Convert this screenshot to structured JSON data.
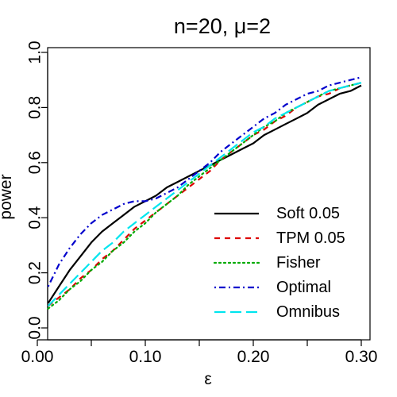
{
  "chart_data": {
    "type": "line",
    "title": "n=20, μ=2",
    "xlabel": "ε",
    "ylabel": "power",
    "xlim": [
      0.0,
      0.3
    ],
    "ylim": [
      0.0,
      1.0
    ],
    "x_ticks": [
      0.0,
      0.05,
      0.1,
      0.15,
      0.2,
      0.25,
      0.3
    ],
    "x_tick_labels": [
      "0.00",
      "",
      "0.10",
      "",
      "0.20",
      "",
      "0.30"
    ],
    "y_ticks": [
      0.0,
      0.2,
      0.4,
      0.6,
      0.8,
      1.0
    ],
    "y_tick_labels": [
      "0.0",
      "0.2",
      "0.4",
      "0.6",
      "0.8",
      "1.0"
    ],
    "grid": false,
    "legend_position": "bottom-right",
    "x": [
      0.01,
      0.02,
      0.03,
      0.04,
      0.05,
      0.06,
      0.07,
      0.08,
      0.09,
      0.1,
      0.11,
      0.12,
      0.13,
      0.14,
      0.15,
      0.16,
      0.17,
      0.18,
      0.19,
      0.2,
      0.21,
      0.22,
      0.23,
      0.24,
      0.25,
      0.26,
      0.27,
      0.28,
      0.29,
      0.3
    ],
    "series": [
      {
        "name": "Soft 0.05",
        "color": "#000000",
        "dash": "solid",
        "values": [
          0.09,
          0.15,
          0.21,
          0.26,
          0.31,
          0.35,
          0.38,
          0.41,
          0.44,
          0.46,
          0.48,
          0.51,
          0.53,
          0.55,
          0.57,
          0.59,
          0.61,
          0.63,
          0.65,
          0.67,
          0.7,
          0.72,
          0.74,
          0.76,
          0.78,
          0.81,
          0.83,
          0.85,
          0.86,
          0.88
        ]
      },
      {
        "name": "TPM 0.05",
        "color": "#dd0000",
        "dash": "dashed",
        "values": [
          0.08,
          0.11,
          0.14,
          0.18,
          0.21,
          0.25,
          0.28,
          0.32,
          0.36,
          0.39,
          0.42,
          0.45,
          0.48,
          0.51,
          0.54,
          0.57,
          0.61,
          0.64,
          0.67,
          0.7,
          0.72,
          0.75,
          0.77,
          0.8,
          0.82,
          0.84,
          0.85,
          0.87,
          0.88,
          0.89
        ]
      },
      {
        "name": "Fisher",
        "color": "#00aa00",
        "dash": "dotted",
        "values": [
          0.07,
          0.1,
          0.14,
          0.17,
          0.21,
          0.24,
          0.28,
          0.31,
          0.35,
          0.38,
          0.42,
          0.45,
          0.48,
          0.52,
          0.55,
          0.58,
          0.61,
          0.64,
          0.67,
          0.7,
          0.73,
          0.75,
          0.78,
          0.8,
          0.82,
          0.84,
          0.86,
          0.87,
          0.88,
          0.89
        ]
      },
      {
        "name": "Optimal",
        "color": "#0000cc",
        "dash": "dashdot",
        "values": [
          0.15,
          0.23,
          0.29,
          0.34,
          0.38,
          0.41,
          0.43,
          0.45,
          0.46,
          0.46,
          0.47,
          0.49,
          0.51,
          0.54,
          0.57,
          0.6,
          0.64,
          0.67,
          0.7,
          0.73,
          0.76,
          0.78,
          0.81,
          0.83,
          0.85,
          0.86,
          0.88,
          0.89,
          0.9,
          0.91
        ]
      },
      {
        "name": "Omnibus",
        "color": "#00e5ee",
        "dash": "longdash",
        "values": [
          0.08,
          0.12,
          0.16,
          0.2,
          0.24,
          0.28,
          0.31,
          0.35,
          0.38,
          0.41,
          0.44,
          0.47,
          0.5,
          0.53,
          0.56,
          0.59,
          0.62,
          0.65,
          0.68,
          0.71,
          0.73,
          0.76,
          0.78,
          0.8,
          0.82,
          0.84,
          0.86,
          0.87,
          0.88,
          0.89
        ]
      }
    ]
  }
}
